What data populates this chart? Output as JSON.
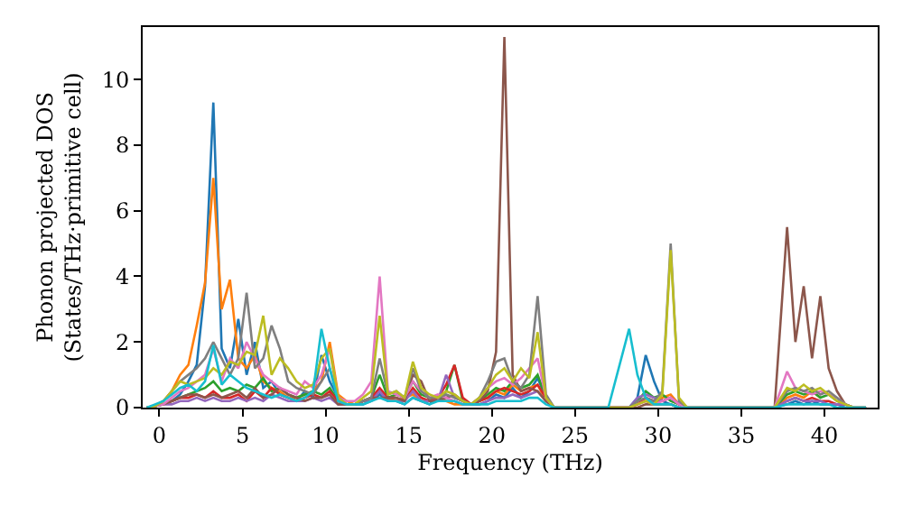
{
  "chart_data": {
    "type": "line",
    "xlabel": "Frequency (THz)",
    "ylabel": "Phonon projected DOS\n(States/THz·primitive cell)",
    "xlim": [
      -1,
      43.2
    ],
    "ylim": [
      0,
      11.6
    ],
    "xticks": [
      0,
      5,
      10,
      15,
      20,
      25,
      30,
      35,
      40
    ],
    "yticks": [
      0,
      2,
      4,
      6,
      8,
      10
    ],
    "marker": "none",
    "line_style": "solid",
    "x": [
      -0.75,
      -0.25,
      0.25,
      0.75,
      1.25,
      1.75,
      2.25,
      2.75,
      3.25,
      3.75,
      4.25,
      4.75,
      5.25,
      5.75,
      6.25,
      6.75,
      7.25,
      7.75,
      8.25,
      8.75,
      9.25,
      9.75,
      10.25,
      10.75,
      11.25,
      11.75,
      12.25,
      12.75,
      13.25,
      13.75,
      14.25,
      14.75,
      15.25,
      15.75,
      16.25,
      16.75,
      17.25,
      17.75,
      18.25,
      18.75,
      19.25,
      19.75,
      20.25,
      20.75,
      21.25,
      21.75,
      22.25,
      22.75,
      23.25,
      23.75,
      25,
      27,
      28.25,
      28.75,
      29.25,
      29.75,
      30.25,
      30.75,
      31.25,
      31.75,
      33,
      35,
      37,
      37.75,
      38.25,
      38.75,
      39.25,
      39.75,
      40.25,
      40.75,
      41.25,
      41.75,
      42.5
    ],
    "series": [
      {
        "color": "#1f77b4",
        "values": [
          0,
          0.05,
          0.1,
          0.2,
          0.4,
          0.8,
          1.3,
          3.7,
          9.3,
          1.8,
          1.2,
          2.7,
          1.0,
          2.0,
          0.6,
          0.8,
          0.4,
          0.3,
          0.2,
          0.5,
          0.3,
          1.6,
          0.8,
          0.3,
          0.1,
          0.1,
          0.1,
          0.2,
          0.4,
          0.2,
          0.2,
          0.1,
          0.3,
          0.2,
          0.1,
          0.3,
          0.2,
          0.2,
          0.1,
          0.1,
          0.1,
          0.2,
          0.4,
          0.3,
          0.6,
          0.3,
          0.5,
          0.9,
          0.3,
          0,
          0,
          0,
          0,
          0.3,
          1.6,
          0.8,
          0.2,
          0.1,
          0,
          0,
          0,
          0,
          0,
          0.1,
          0.2,
          0.1,
          0.2,
          0.1,
          0.1,
          0.1,
          0,
          0,
          0
        ]
      },
      {
        "color": "#ff7f0e",
        "values": [
          null,
          null,
          0.2,
          0.5,
          1.0,
          1.3,
          2.5,
          3.8,
          7.0,
          3.0,
          3.9,
          1.5,
          1.2,
          1.6,
          0.8,
          0.6,
          0.5,
          0.3,
          0.3,
          0.4,
          0.5,
          0.8,
          2.0,
          0.4,
          0.2,
          0.1,
          0.2,
          0.3,
          0.5,
          0.3,
          0.2,
          0.3,
          0.4,
          0.2,
          0.2,
          0.3,
          0.2,
          0.1,
          0.1,
          0.1,
          0.2,
          0.3,
          0.5,
          0.4,
          0.7,
          0.5,
          0.6,
          0.7,
          0.2,
          0,
          0,
          0,
          0,
          0.1,
          0.2,
          0.2,
          0.3,
          0.4,
          0.1,
          0,
          0,
          0,
          0,
          0.3,
          0.4,
          0.3,
          0.5,
          0.3,
          null,
          null,
          null,
          null,
          null
        ]
      },
      {
        "color": "#2ca02c",
        "values": [
          0,
          0.05,
          0.1,
          0.2,
          0.3,
          0.4,
          0.5,
          0.6,
          0.8,
          0.5,
          0.6,
          0.5,
          0.7,
          0.6,
          0.9,
          0.5,
          0.6,
          0.4,
          0.3,
          0.4,
          0.5,
          0.4,
          0.6,
          0.2,
          0.1,
          0.1,
          0.2,
          0.3,
          1.0,
          0.3,
          0.4,
          0.3,
          0.8,
          0.4,
          0.3,
          0.2,
          0.5,
          1.3,
          0.2,
          0.1,
          0.2,
          0.4,
          0.6,
          0.5,
          0.8,
          0.6,
          0.7,
          1.0,
          0.3,
          0,
          0,
          0,
          0,
          0.2,
          0.5,
          0.3,
          0.4,
          0.2,
          0.1,
          0,
          0,
          0,
          0,
          0.4,
          0.5,
          0.4,
          0.5,
          0.3,
          0.4,
          0.2,
          0.1,
          0,
          0
        ]
      },
      {
        "color": "#d62728",
        "values": [
          0,
          0.05,
          0.1,
          0.2,
          0.3,
          0.3,
          0.4,
          0.3,
          0.5,
          0.3,
          0.3,
          0.4,
          0.2,
          0.5,
          0.3,
          0.6,
          0.4,
          0.3,
          0.2,
          0.3,
          0.4,
          0.3,
          0.5,
          0.2,
          0.1,
          0.1,
          0.2,
          0.3,
          0.6,
          0.3,
          0.3,
          0.2,
          0.6,
          0.3,
          0.2,
          0.3,
          0.7,
          1.3,
          0.3,
          0.1,
          0.2,
          0.3,
          0.5,
          0.6,
          0.5,
          0.4,
          0.5,
          0.7,
          0.3,
          0,
          0,
          0,
          0,
          0.1,
          0.3,
          0.2,
          0.2,
          0.3,
          0.1,
          0,
          0,
          0,
          0,
          0.2,
          0.3,
          0.2,
          0.3,
          0.2,
          0.2,
          0.1,
          0.1,
          null,
          null
        ]
      },
      {
        "color": "#9467bd",
        "values": [
          0,
          0.05,
          0.1,
          0.1,
          0.2,
          0.2,
          0.3,
          0.2,
          0.3,
          0.2,
          0.2,
          0.3,
          0.2,
          0.3,
          0.2,
          0.4,
          0.3,
          0.2,
          0.2,
          0.2,
          0.3,
          0.2,
          0.3,
          0.1,
          0.1,
          0.1,
          0.2,
          0.2,
          0.5,
          0.2,
          0.2,
          0.2,
          0.5,
          0.2,
          0.2,
          0.2,
          1.0,
          0.3,
          0.2,
          0.1,
          0.1,
          0.2,
          0.3,
          0.3,
          0.4,
          0.3,
          0.4,
          0.5,
          0.2,
          0,
          0,
          0,
          0,
          0.3,
          0.4,
          0.3,
          0.2,
          0.3,
          0.1,
          0,
          0,
          0,
          0,
          0.2,
          0.3,
          0.2,
          0.2,
          0.2,
          0.1,
          0.1,
          0.1,
          0,
          0
        ]
      },
      {
        "color": "#8c564b",
        "values": [
          0,
          0.05,
          0.1,
          0.2,
          0.3,
          0.4,
          0.4,
          0.3,
          0.4,
          0.3,
          0.4,
          0.5,
          0.3,
          0.6,
          0.3,
          0.4,
          0.6,
          0.4,
          0.3,
          0.2,
          0.3,
          0.3,
          0.4,
          0.1,
          0.1,
          0.1,
          0.2,
          0.3,
          0.3,
          0.3,
          0.3,
          0.2,
          1.0,
          0.8,
          0.2,
          0.2,
          0.3,
          0.4,
          0.2,
          0.1,
          0.2,
          0.5,
          1.7,
          11.3,
          1.0,
          0.5,
          0.6,
          0.5,
          0.2,
          0,
          0,
          0,
          0,
          0,
          0.1,
          0.1,
          0.1,
          0.1,
          0,
          0,
          0,
          0,
          0,
          5.5,
          2.0,
          3.7,
          1.5,
          3.4,
          1.2,
          0.5,
          0.1,
          0,
          0
        ]
      },
      {
        "color": "#e377c2",
        "values": [
          0,
          0.05,
          0.1,
          0.3,
          0.5,
          0.6,
          0.8,
          1.0,
          1.8,
          0.8,
          1.5,
          1.2,
          2.0,
          1.5,
          1.0,
          0.8,
          0.6,
          0.5,
          0.4,
          0.8,
          0.6,
          1.0,
          1.8,
          0.3,
          0.2,
          0.2,
          0.4,
          0.8,
          4.0,
          0.5,
          0.4,
          0.3,
          0.8,
          0.5,
          0.3,
          0.4,
          0.3,
          0.2,
          0.1,
          0.1,
          0.3,
          0.6,
          0.8,
          0.9,
          0.7,
          0.9,
          1.2,
          1.5,
          0.3,
          0,
          0,
          0,
          0,
          0.1,
          0.2,
          0.1,
          0.2,
          0.3,
          0.1,
          0,
          0,
          0,
          0,
          1.1,
          0.6,
          0.5,
          0.4,
          0.5,
          0.4,
          0.3,
          0.1,
          0,
          0
        ]
      },
      {
        "color": "#7f7f7f",
        "values": [
          0,
          0.05,
          0.2,
          0.5,
          0.8,
          1.0,
          1.2,
          1.5,
          2.0,
          1.5,
          1.0,
          1.5,
          3.5,
          1.2,
          1.5,
          2.5,
          1.8,
          0.8,
          0.6,
          0.5,
          0.4,
          0.8,
          1.2,
          0.3,
          0.1,
          0.1,
          0.2,
          0.3,
          1.5,
          0.4,
          0.5,
          0.3,
          1.2,
          0.5,
          0.3,
          0.3,
          0.4,
          0.3,
          0.2,
          0.1,
          0.3,
          0.8,
          1.4,
          1.5,
          0.8,
          0.6,
          1.0,
          3.4,
          0.4,
          0,
          0,
          0,
          0,
          0.2,
          0.3,
          0.2,
          0.5,
          5.0,
          0.2,
          0,
          0,
          0,
          0,
          0.5,
          0.6,
          0.5,
          0.6,
          0.4,
          0.5,
          0.3,
          0.1,
          0,
          0
        ]
      },
      {
        "color": "#bcbd22",
        "values": [
          0,
          0.05,
          0.2,
          0.5,
          0.8,
          0.7,
          0.8,
          0.9,
          1.2,
          1.0,
          1.4,
          1.3,
          1.7,
          1.6,
          2.8,
          1.0,
          1.5,
          1.2,
          0.8,
          0.6,
          0.7,
          1.5,
          1.8,
          0.3,
          0.1,
          0.1,
          0.3,
          0.5,
          2.8,
          0.4,
          0.5,
          0.3,
          1.4,
          0.6,
          0.4,
          0.3,
          0.5,
          0.4,
          0.2,
          0.1,
          0.3,
          0.6,
          1.0,
          1.2,
          0.8,
          1.2,
          0.9,
          2.3,
          0.3,
          0,
          0,
          0,
          0,
          0.1,
          0.2,
          0.1,
          0.4,
          4.8,
          0.3,
          0,
          0,
          0,
          0,
          0.6,
          0.5,
          0.7,
          0.5,
          0.6,
          0.4,
          0.2,
          0.1,
          0,
          0
        ]
      },
      {
        "color": "#17becf",
        "values": [
          0,
          0.1,
          0.2,
          0.4,
          0.6,
          0.7,
          0.5,
          0.8,
          1.9,
          0.7,
          1.0,
          0.8,
          0.6,
          0.5,
          0.4,
          0.3,
          0.4,
          0.3,
          0.2,
          0.3,
          0.5,
          2.4,
          1.2,
          0.2,
          0.1,
          0.1,
          0.1,
          0.2,
          0.3,
          0.2,
          0.2,
          0.1,
          0.3,
          0.2,
          0.1,
          0.2,
          0.2,
          0.2,
          0.1,
          0.1,
          0.1,
          0.1,
          0.2,
          0.2,
          0.2,
          0.2,
          0.3,
          0.3,
          0.1,
          0,
          0,
          0,
          2.4,
          1.0,
          0.3,
          0.1,
          0.1,
          0.1,
          0,
          0,
          0,
          0,
          0,
          0.1,
          0.1,
          0.1,
          0.1,
          0.1,
          0.1,
          0,
          0,
          0,
          0
        ]
      }
    ]
  }
}
